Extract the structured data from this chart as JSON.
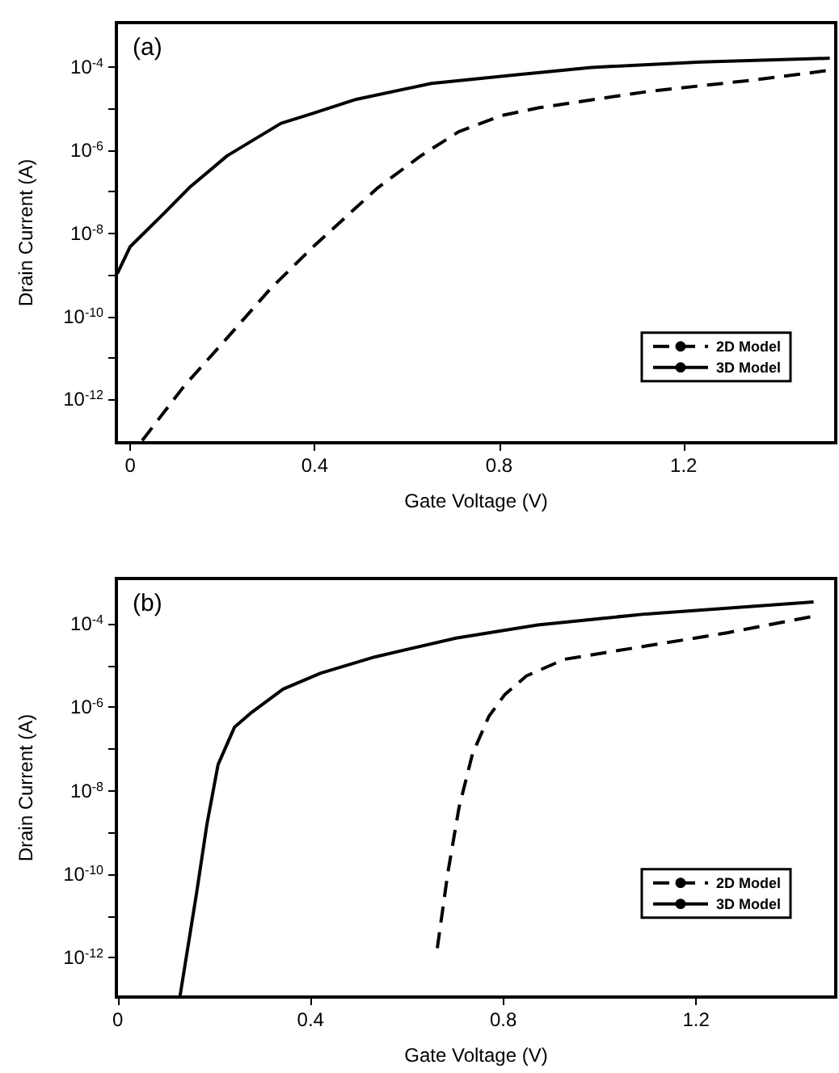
{
  "chart_data": [
    {
      "type": "line",
      "annotations": [
        "(a)"
      ],
      "xlabel": "Gate Voltage (V)",
      "ylabel": "Drain Current (A)",
      "log": "y",
      "xlim": [
        -0.03,
        1.53
      ],
      "ylim": [
        9e-14,
        0.0012
      ],
      "xticks": [
        0,
        0.4,
        0.8,
        1.2
      ],
      "yticks": [
        {
          "value": 0.0001,
          "label": "10$^{-4}$"
        },
        {
          "value": 1e-05,
          "label": null
        },
        {
          "value": 1e-06,
          "label": "10$^{-6}$"
        },
        {
          "value": 1e-07,
          "label": null
        },
        {
          "value": 1e-08,
          "label": "10$^{-8}$"
        },
        {
          "value": 1e-09,
          "label": null
        },
        {
          "value": 1e-10,
          "label": "10$^{-10}$"
        },
        {
          "value": 1e-11,
          "label": null
        },
        {
          "value": 1e-12,
          "label": "10$^{-12}$"
        }
      ],
      "legend": "right",
      "grid": false,
      "marker": "none",
      "series": [
        {
          "name": "2D Model",
          "color": "#000000",
          "line_style": "dashed",
          "x": [
            0.026,
            0.117,
            0.21,
            0.303,
            0.397,
            0.537,
            0.63,
            0.712,
            0.805,
            0.887,
            1.12,
            1.354,
            1.523
          ],
          "values": [
            1.02e-13,
            2.1e-12,
            3e-11,
            4.5e-10,
            4.8e-09,
            1.26e-07,
            7.4e-07,
            2.8e-06,
            6.9e-06,
            1.07e-05,
            2.6e-05,
            5e-05,
            8.7e-05
          ]
        },
        {
          "name": "3D Model",
          "color": "#000000",
          "line_style": "solid",
          "x": [
            -0.028,
            0,
            0.07,
            0.128,
            0.21,
            0.327,
            0.397,
            0.49,
            0.653,
            0.83,
            1.0,
            1.237,
            1.517
          ],
          "values": [
            1.07e-09,
            4.8e-09,
            2.8e-08,
            1.26e-07,
            7.4e-07,
            4.5e-06,
            7.9e-06,
            1.7e-05,
            4.1e-05,
            6.5e-05,
            0.0001,
            0.000135,
            0.000166
          ]
        }
      ]
    },
    {
      "type": "line",
      "annotations": [
        "(b)"
      ],
      "xlabel": "Gate Voltage (V)",
      "ylabel": "Drain Current (A)",
      "log": "y",
      "xlim": [
        -0.003,
        1.49
      ],
      "ylim": [
        1.15e-13,
        0.0012
      ],
      "xticks": [
        0,
        0.4,
        0.8,
        1.2
      ],
      "yticks": [
        {
          "value": 0.0001,
          "label": "10$^{-4}$"
        },
        {
          "value": 1e-05,
          "label": null
        },
        {
          "value": 1e-06,
          "label": "10$^{-6}$"
        },
        {
          "value": 1e-07,
          "label": null
        },
        {
          "value": 1e-08,
          "label": "10$^{-8}$"
        },
        {
          "value": 1e-09,
          "label": null
        },
        {
          "value": 1e-10,
          "label": "10$^{-10}$"
        },
        {
          "value": 1e-11,
          "label": null
        },
        {
          "value": 1e-12,
          "label": "10$^{-12}$"
        }
      ],
      "legend": "right",
      "grid": false,
      "marker": "none",
      "series": [
        {
          "name": "2D Model",
          "color": "#000000",
          "line_style": "dashed",
          "x": [
            0.663,
            0.685,
            0.708,
            0.736,
            0.77,
            0.803,
            0.848,
            0.927,
            1.096,
            1.264,
            1.444
          ],
          "values": [
            1.7e-12,
            1.1e-10,
            3.9e-09,
            7.6e-08,
            6e-07,
            2e-06,
            5.6e-06,
            1.4e-05,
            2.9e-05,
            6e-05,
            0.00015
          ]
        },
        {
          "name": "3D Model",
          "color": "#000000",
          "line_style": "solid",
          "x": [
            0.129,
            0.163,
            0.185,
            0.208,
            0.242,
            0.275,
            0.343,
            0.421,
            0.534,
            0.702,
            0.871,
            1.096,
            1.444
          ],
          "values": [
            1.2e-13,
            3.3e-11,
            1.6e-09,
            4.2e-08,
            3.3e-07,
            7.1e-07,
            2.7e-06,
            6.5e-06,
            1.6e-05,
            4.5e-05,
            9.3e-05,
            0.00017,
            0.00033
          ]
        }
      ]
    }
  ]
}
